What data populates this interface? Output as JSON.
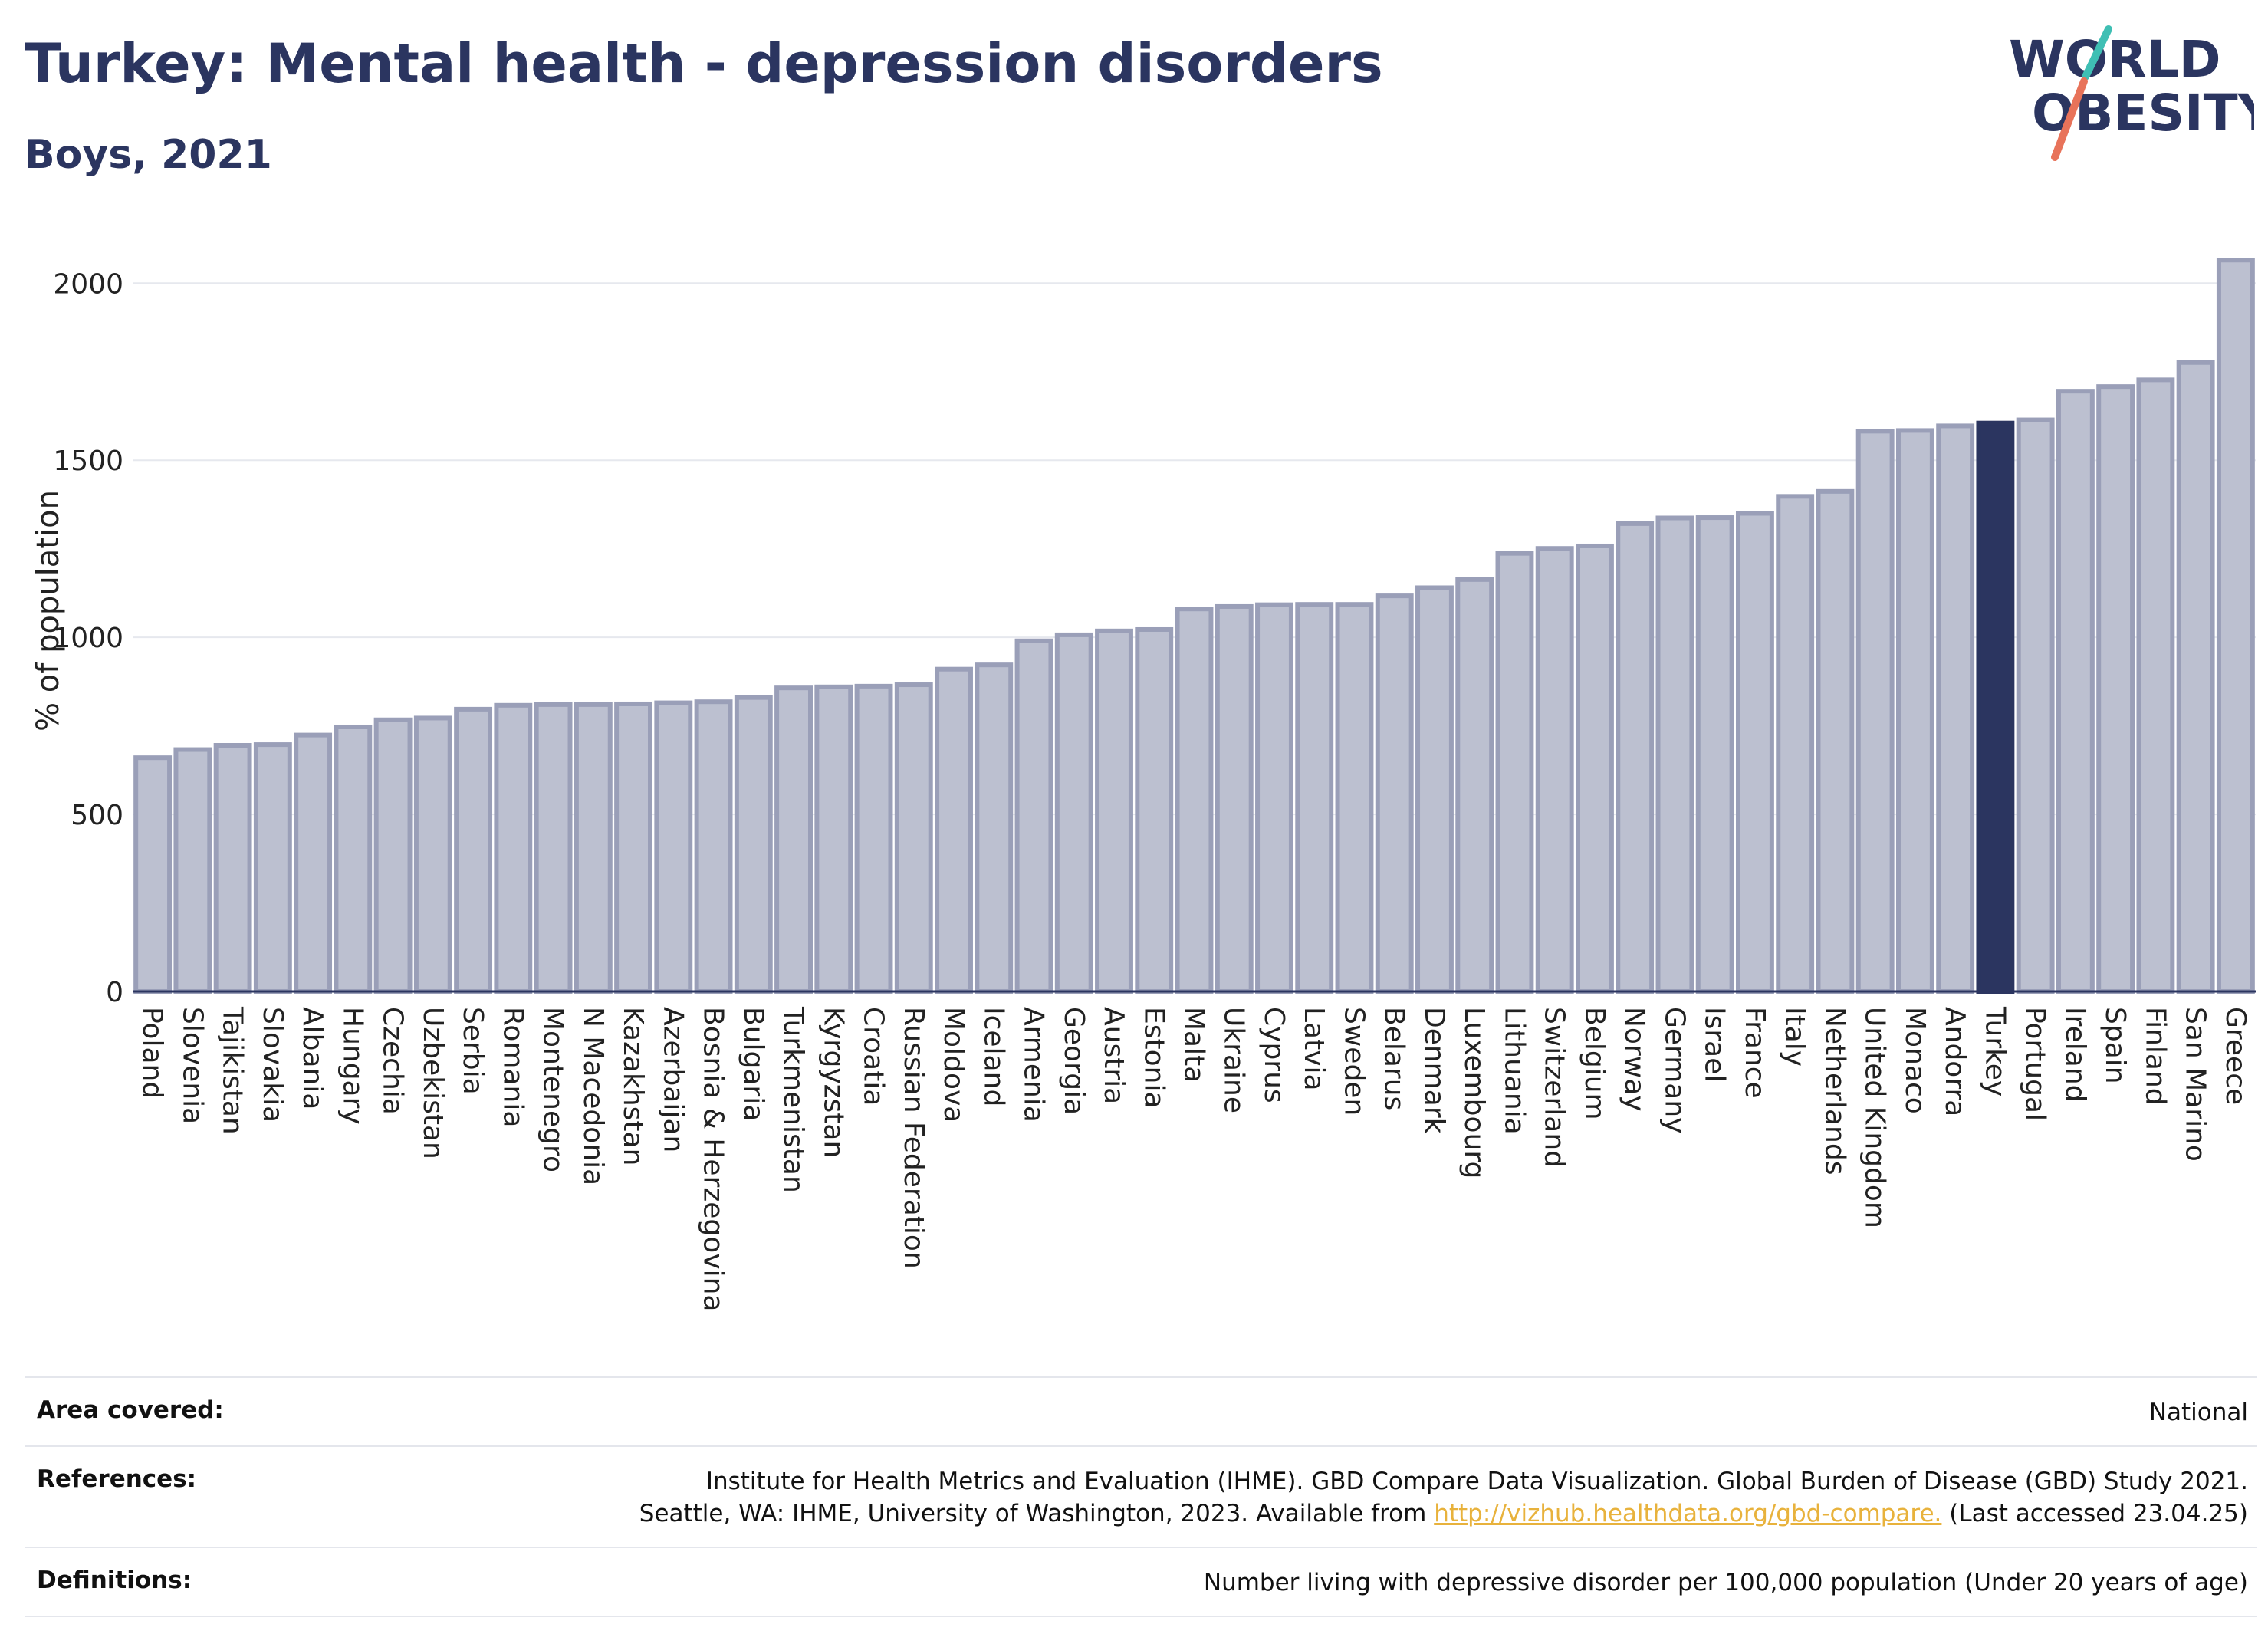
{
  "header": {
    "title": "Turkey: Mental health - depression disorders",
    "subtitle": "Boys, 2021",
    "logo_text_1": "WORLD",
    "logo_text_2": "OBESITY"
  },
  "colors": {
    "bar": "#bcc0d0",
    "bar_stroke": "#9a9fb8",
    "highlight": "#2b3560",
    "title": "#2b3560",
    "logo_teal": "#3fbfb4",
    "logo_coral": "#e8735a"
  },
  "chart_data": {
    "type": "bar",
    "title": "Turkey: Mental health - depression disorders",
    "subtitle": "Boys, 2021",
    "ylabel": "% of population",
    "xlabel": "",
    "ylim": [
      0,
      2150
    ],
    "yticks": [
      0,
      500,
      1000,
      1500,
      2000
    ],
    "grid": true,
    "highlight": "Turkey",
    "categories": [
      "Poland",
      "Slovenia",
      "Tajikistan",
      "Slovakia",
      "Albania",
      "Hungary",
      "Czechia",
      "Uzbekistan",
      "Serbia",
      "Romania",
      "Montenegro",
      "N Macedonia",
      "Kazakhstan",
      "Azerbaijan",
      "Bosnia & Herzegovina",
      "Bulgaria",
      "Turkmenistan",
      "Kyrgyzstan",
      "Croatia",
      "Russian Federation",
      "Moldova",
      "Iceland",
      "Armenia",
      "Georgia",
      "Austria",
      "Estonia",
      "Malta",
      "Ukraine",
      "Cyprus",
      "Latvia",
      "Sweden",
      "Belarus",
      "Denmark",
      "Luxembourg",
      "Lithuania",
      "Switzerland",
      "Belgium",
      "Norway",
      "Germany",
      "Israel",
      "France",
      "Italy",
      "Netherlands",
      "United Kingdom",
      "Monaco",
      "Andorra",
      "Turkey",
      "Portugal",
      "Ireland",
      "Spain",
      "Finland",
      "San Marino",
      "Greece"
    ],
    "values": [
      660,
      683,
      695,
      697,
      724,
      747,
      767,
      772,
      797,
      808,
      810,
      810,
      812,
      815,
      818,
      830,
      857,
      860,
      862,
      866,
      910,
      922,
      990,
      1007,
      1018,
      1022,
      1080,
      1087,
      1092,
      1093,
      1093,
      1117,
      1140,
      1163,
      1237,
      1251,
      1258,
      1321,
      1337,
      1338,
      1350,
      1398,
      1412,
      1582,
      1584,
      1597,
      1605,
      1614,
      1695,
      1708,
      1727,
      1776,
      2065
    ]
  },
  "info": {
    "area_label": "Area covered:",
    "area_value": "National",
    "ref_label": "References:",
    "ref_line1": "Institute for Health Metrics and Evaluation (IHME). GBD Compare Data Visualization. Global Burden of Disease (GBD) Study 2021.",
    "ref_line2_pre": "Seattle, WA: IHME, University of Washington, 2023. Available from ",
    "ref_link": "http://vizhub.healthdata.org/gbd-compare.",
    "ref_line2_post": " (Last accessed 23.04.25)",
    "def_label": "Definitions:",
    "def_value": "Number living with depressive disorder per 100,000 population (Under 20 years of age)"
  }
}
